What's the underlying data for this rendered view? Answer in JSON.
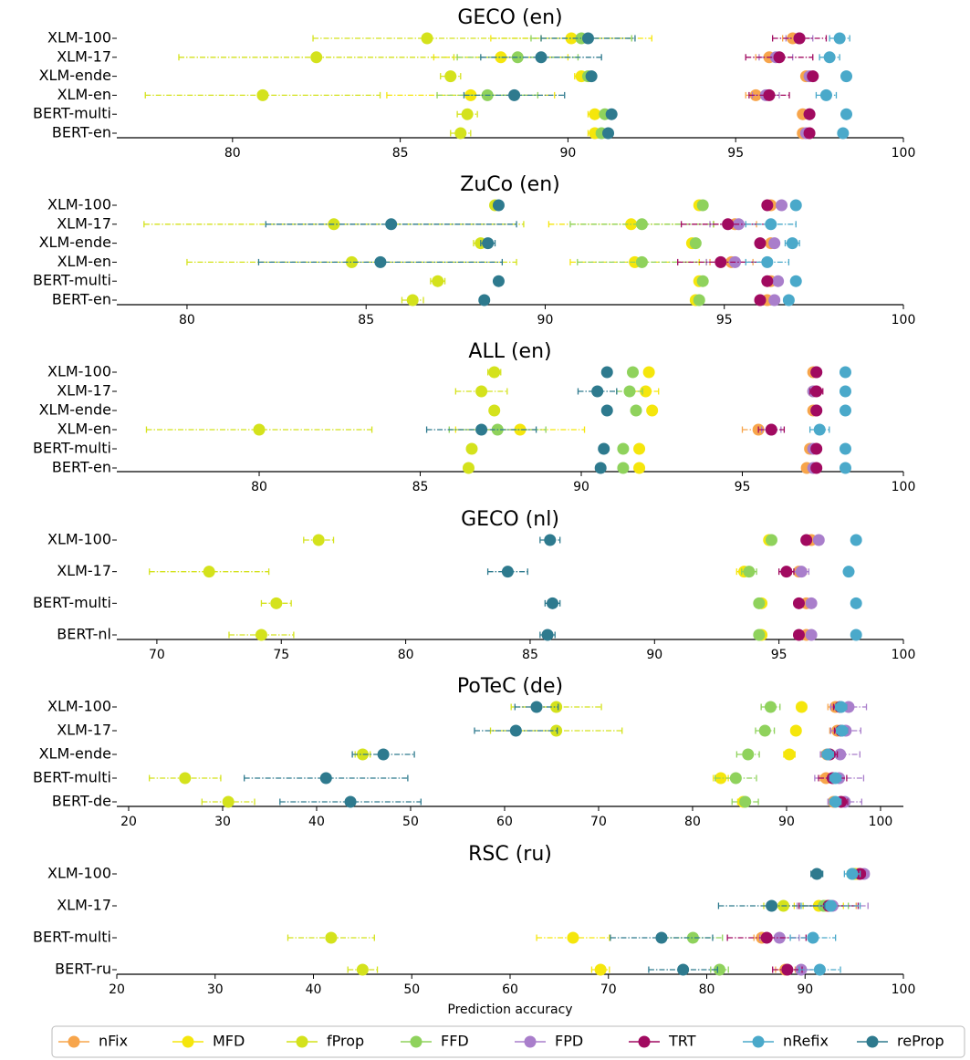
{
  "chart_data": [
    {
      "type": "dot",
      "title": "GECO (en)",
      "categories": [
        "XLM-100",
        "XLM-17",
        "XLM-ende",
        "XLM-en",
        "BERT-multi",
        "BERT-en"
      ],
      "xlim": [
        76.55,
        100
      ],
      "xticks": [
        80,
        85,
        90,
        95,
        100
      ],
      "series": [
        {
          "name": "nFix",
          "color": "#f7a54b",
          "values": [
            96.7,
            96.0,
            97.1,
            95.6,
            97.0,
            97.0
          ],
          "errors": [
            0.3,
            0.4,
            0.1,
            0.3,
            0.1,
            0.1
          ]
        },
        {
          "name": "MFD",
          "color": "#f5e60c",
          "values": [
            90.1,
            88.0,
            90.4,
            87.1,
            90.8,
            90.8
          ],
          "errors": [
            2.4,
            2.0,
            0.2,
            2.5,
            0.2,
            0.2
          ]
        },
        {
          "name": "fProp",
          "color": "#d4e21c",
          "values": [
            85.8,
            82.5,
            86.5,
            80.9,
            87.0,
            86.8
          ],
          "errors": [
            3.4,
            4.1,
            0.3,
            3.5,
            0.3,
            0.3
          ]
        },
        {
          "name": "FFD",
          "color": "#8fd25c",
          "values": [
            90.4,
            88.5,
            90.6,
            87.6,
            91.1,
            91.0
          ],
          "errors": [
            1.5,
            1.8,
            0.1,
            1.5,
            0.1,
            0.1
          ]
        },
        {
          "name": "FPD",
          "color": "#a97ecb",
          "values": [
            96.9,
            96.2,
            97.2,
            95.9,
            97.2,
            97.1
          ],
          "errors": [
            0.4,
            0.5,
            0.1,
            0.4,
            0.1,
            0.1
          ]
        },
        {
          "name": "TRT",
          "color": "#a10a60",
          "values": [
            96.9,
            96.3,
            97.3,
            96.0,
            97.2,
            97.2
          ],
          "errors": [
            0.8,
            1.0,
            0.1,
            0.6,
            0.1,
            0.1
          ]
        },
        {
          "name": "nRefix",
          "color": "#4aa9ca",
          "values": [
            98.1,
            97.8,
            98.3,
            97.7,
            98.3,
            98.2
          ],
          "errors": [
            0.3,
            0.3,
            0.1,
            0.3,
            0.1,
            0.1
          ]
        },
        {
          "name": "reProp",
          "color": "#2e7a8e",
          "values": [
            90.6,
            89.2,
            90.7,
            88.4,
            91.3,
            91.2
          ],
          "errors": [
            1.4,
            1.8,
            0.1,
            1.5,
            0.1,
            0.1
          ]
        }
      ]
    },
    {
      "type": "dot",
      "title": "ZuCo (en)",
      "categories": [
        "XLM-100",
        "XLM-17",
        "XLM-ende",
        "XLM-en",
        "BERT-multi",
        "BERT-en"
      ],
      "xlim": [
        78.04,
        100
      ],
      "xticks": [
        80,
        85,
        90,
        95,
        100
      ],
      "series": [
        {
          "name": "nFix",
          "color": "#f7a54b",
          "values": [
            96.3,
            95.3,
            96.3,
            95.2,
            96.3,
            96.2
          ],
          "errors": [
            0.1,
            0.6,
            0.1,
            0.6,
            0.1,
            0.1
          ]
        },
        {
          "name": "MFD",
          "color": "#f5e60c",
          "values": [
            94.3,
            92.4,
            94.1,
            92.5,
            94.3,
            94.2
          ],
          "errors": [
            0.1,
            2.3,
            0.1,
            1.8,
            0.1,
            0.1
          ]
        },
        {
          "name": "fProp",
          "color": "#d4e21c",
          "values": [
            88.6,
            84.1,
            88.2,
            84.6,
            87.0,
            86.3
          ],
          "errors": [
            0.1,
            5.3,
            0.2,
            4.6,
            0.2,
            0.3
          ]
        },
        {
          "name": "FFD",
          "color": "#8fd25c",
          "values": [
            94.4,
            92.7,
            94.2,
            92.7,
            94.4,
            94.3
          ],
          "errors": [
            0.1,
            2.0,
            0.1,
            1.8,
            0.1,
            0.1
          ]
        },
        {
          "name": "FPD",
          "color": "#a97ecb",
          "values": [
            96.6,
            95.4,
            96.4,
            95.3,
            96.5,
            96.4
          ],
          "errors": [
            0.1,
            0.8,
            0.1,
            0.8,
            0.1,
            0.1
          ]
        },
        {
          "name": "TRT",
          "color": "#a10a60",
          "values": [
            96.2,
            95.1,
            96.0,
            94.9,
            96.2,
            96.0
          ],
          "errors": [
            0.1,
            1.3,
            0.1,
            1.2,
            0.1,
            0.1
          ]
        },
        {
          "name": "nRefix",
          "color": "#4aa9ca",
          "values": [
            97.0,
            96.3,
            96.9,
            96.2,
            97.0,
            96.8
          ],
          "errors": [
            0.1,
            0.7,
            0.2,
            0.6,
            0.1,
            0.1
          ]
        },
        {
          "name": "reProp",
          "color": "#2e7a8e",
          "values": [
            88.7,
            85.7,
            88.4,
            85.4,
            88.7,
            88.3
          ],
          "errors": [
            0.1,
            3.5,
            0.2,
            3.4,
            0.1,
            0.1
          ]
        }
      ]
    },
    {
      "type": "dot",
      "title": "ALL (en)",
      "categories": [
        "XLM-100",
        "XLM-17",
        "XLM-ende",
        "XLM-en",
        "BERT-multi",
        "BERT-en"
      ],
      "xlim": [
        75.58,
        100
      ],
      "xticks": [
        80,
        85,
        90,
        95,
        100
      ],
      "series": [
        {
          "name": "nFix",
          "color": "#f7a54b",
          "values": [
            97.2,
            97.2,
            97.2,
            95.5,
            97.1,
            97.0
          ],
          "errors": [
            0.1,
            0.1,
            0.1,
            0.5,
            0.1,
            0.1
          ]
        },
        {
          "name": "MFD",
          "color": "#f5e60c",
          "values": [
            92.1,
            92.0,
            92.2,
            88.1,
            91.8,
            91.8
          ],
          "errors": [
            0.1,
            0.4,
            0.1,
            2.0,
            0.1,
            0.1
          ]
        },
        {
          "name": "fProp",
          "color": "#d4e21c",
          "values": [
            87.3,
            86.9,
            87.3,
            80.0,
            86.6,
            86.5
          ],
          "errors": [
            0.2,
            0.8,
            0.1,
            3.5,
            0.1,
            0.1
          ]
        },
        {
          "name": "FFD",
          "color": "#8fd25c",
          "values": [
            91.6,
            91.5,
            91.7,
            87.4,
            91.3,
            91.3
          ],
          "errors": [
            0.1,
            0.4,
            0.1,
            1.5,
            0.1,
            0.1
          ]
        },
        {
          "name": "FPD",
          "color": "#a97ecb",
          "values": [
            97.3,
            97.2,
            97.3,
            95.9,
            97.2,
            97.2
          ],
          "errors": [
            0.1,
            0.1,
            0.1,
            0.3,
            0.1,
            0.1
          ]
        },
        {
          "name": "TRT",
          "color": "#a10a60",
          "values": [
            97.3,
            97.3,
            97.3,
            95.9,
            97.3,
            97.3
          ],
          "errors": [
            0.1,
            0.2,
            0.1,
            0.4,
            0.1,
            0.1
          ]
        },
        {
          "name": "nRefix",
          "color": "#4aa9ca",
          "values": [
            98.2,
            98.2,
            98.2,
            97.4,
            98.2,
            98.2
          ],
          "errors": [
            0.1,
            0.1,
            0.1,
            0.3,
            0.1,
            0.1
          ]
        },
        {
          "name": "reProp",
          "color": "#2e7a8e",
          "values": [
            90.8,
            90.5,
            90.8,
            86.9,
            90.7,
            90.6
          ],
          "errors": [
            0.1,
            0.6,
            0.1,
            1.7,
            0.1,
            0.1
          ]
        }
      ]
    },
    {
      "type": "dot",
      "title": "GECO (nl)",
      "categories": [
        "XLM-100",
        "XLM-17",
        "BERT-multi",
        "BERT-nl"
      ],
      "xlim": [
        68.39,
        100
      ],
      "xticks": [
        70,
        75,
        80,
        85,
        90,
        95,
        100
      ],
      "series": [
        {
          "name": "nFix",
          "color": "#f7a54b",
          "values": [
            96.3,
            95.8,
            96.1,
            96.1
          ],
          "errors": [
            0.1,
            0.3,
            0.1,
            0.1
          ]
        },
        {
          "name": "MFD",
          "color": "#f5e60c",
          "values": [
            94.6,
            93.6,
            94.3,
            94.3
          ],
          "errors": [
            0.1,
            0.3,
            0.1,
            0.1
          ]
        },
        {
          "name": "fProp",
          "color": "#d4e21c",
          "values": [
            76.5,
            72.1,
            74.8,
            74.2
          ],
          "errors": [
            0.6,
            2.4,
            0.6,
            1.3
          ]
        },
        {
          "name": "FFD",
          "color": "#8fd25c",
          "values": [
            94.7,
            93.8,
            94.2,
            94.2
          ],
          "errors": [
            0.1,
            0.3,
            0.1,
            0.1
          ]
        },
        {
          "name": "FPD",
          "color": "#a97ecb",
          "values": [
            96.6,
            95.9,
            96.3,
            96.3
          ],
          "errors": [
            0.1,
            0.3,
            0.1,
            0.1
          ]
        },
        {
          "name": "TRT",
          "color": "#a10a60",
          "values": [
            96.1,
            95.3,
            95.8,
            95.8
          ],
          "errors": [
            0.1,
            0.3,
            0.1,
            0.1
          ]
        },
        {
          "name": "nRefix",
          "color": "#4aa9ca",
          "values": [
            98.1,
            97.8,
            98.1,
            98.1
          ],
          "errors": [
            0.1,
            0.1,
            0.1,
            0.1
          ]
        },
        {
          "name": "reProp",
          "color": "#2e7a8e",
          "values": [
            85.8,
            84.1,
            85.9,
            85.7
          ],
          "errors": [
            0.4,
            0.8,
            0.3,
            0.3
          ]
        }
      ]
    },
    {
      "type": "dot",
      "title": "PoTeC (de)",
      "categories": [
        "XLM-100",
        "XLM-17",
        "XLM-ende",
        "BERT-multi",
        "BERT-de"
      ],
      "xlim": [
        18.74,
        102.43
      ],
      "xticks": [
        20,
        30,
        40,
        50,
        60,
        70,
        80,
        90,
        100
      ],
      "series": [
        {
          "name": "nFix",
          "color": "#f7a54b",
          "values": [
            95.2,
            95.4,
            94.3,
            94.2,
            95.0
          ],
          "errors": [
            0.8,
            0.8,
            0.6,
            0.6,
            0.5
          ]
        },
        {
          "name": "MFD",
          "color": "#f5e60c",
          "values": [
            91.6,
            91.0,
            90.3,
            83.0,
            85.4
          ],
          "errors": [
            0.5,
            0.5,
            0.6,
            0.8,
            0.6
          ]
        },
        {
          "name": "fProp",
          "color": "#d4e21c",
          "values": [
            65.5,
            65.5,
            44.9,
            26.0,
            30.6
          ],
          "errors": [
            4.8,
            7.0,
            0.8,
            3.8,
            2.8
          ]
        },
        {
          "name": "FFD",
          "color": "#8fd25c",
          "values": [
            88.3,
            87.7,
            85.9,
            84.6,
            85.6
          ],
          "errors": [
            1.0,
            1.0,
            1.2,
            2.2,
            1.4
          ]
        },
        {
          "name": "FPD",
          "color": "#a97ecb",
          "values": [
            96.6,
            96.3,
            95.7,
            95.6,
            96.2
          ],
          "errors": [
            1.9,
            1.6,
            2.1,
            2.6,
            1.8
          ]
        },
        {
          "name": "TRT",
          "color": "#a10a60",
          "values": [
            95.7,
            95.8,
            94.6,
            94.9,
            95.8
          ],
          "errors": [
            0.7,
            0.7,
            0.8,
            1.5,
            0.7
          ]
        },
        {
          "name": "nRefix",
          "color": "#4aa9ca",
          "values": [
            95.8,
            95.9,
            94.4,
            95.2,
            95.2
          ],
          "errors": [
            0.6,
            0.6,
            0.6,
            0.6,
            0.6
          ]
        },
        {
          "name": "reProp",
          "color": "#2e7a8e",
          "values": [
            63.4,
            61.2,
            47.1,
            41.0,
            43.6
          ],
          "errors": [
            2.3,
            4.4,
            3.3,
            8.7,
            7.5
          ]
        }
      ]
    },
    {
      "type": "dot",
      "title": "RSC (ru)",
      "xlabel": "Prediction accuracy",
      "categories": [
        "XLM-100",
        "XLM-17",
        "BERT-multi",
        "BERT-ru"
      ],
      "xlim": [
        20,
        100
      ],
      "xticks": [
        20,
        30,
        40,
        50,
        60,
        70,
        80,
        90,
        100
      ],
      "series": [
        {
          "name": "nFix",
          "color": "#f7a54b",
          "values": [
            95.4,
            92.2,
            85.6,
            88.0
          ],
          "errors": [
            0.6,
            3.0,
            0.8,
            1.0
          ]
        },
        {
          "name": "MFD",
          "color": "#f5e60c",
          "values": [
            95.1,
            91.4,
            66.4,
            69.2
          ],
          "errors": [
            0.4,
            2.5,
            3.7,
            0.9
          ]
        },
        {
          "name": "fProp",
          "color": "#d4e21c",
          "values": [
            95.0,
            87.8,
            41.8,
            45.0
          ],
          "errors": [
            0.4,
            2.0,
            4.4,
            1.5
          ]
        },
        {
          "name": "FFD",
          "color": "#8fd25c",
          "values": [
            94.8,
            91.9,
            78.6,
            81.3
          ],
          "errors": [
            0.5,
            2.5,
            3.0,
            0.9
          ]
        },
        {
          "name": "FPD",
          "color": "#a97ecb",
          "values": [
            96.0,
            92.8,
            87.4,
            89.6
          ],
          "errors": [
            0.5,
            3.6,
            2.0,
            1.5
          ]
        },
        {
          "name": "TRT",
          "color": "#a10a60",
          "values": [
            95.6,
            92.4,
            86.1,
            88.2
          ],
          "errors": [
            0.5,
            3.0,
            4.0,
            1.5
          ]
        },
        {
          "name": "nRefix",
          "color": "#4aa9ca",
          "values": [
            94.8,
            92.6,
            90.8,
            91.5
          ],
          "errors": [
            0.8,
            3.0,
            2.3,
            2.1
          ]
        },
        {
          "name": "reProp",
          "color": "#2e7a8e",
          "values": [
            91.2,
            86.6,
            75.4,
            77.6
          ],
          "errors": [
            0.6,
            5.4,
            5.2,
            3.5
          ]
        }
      ]
    }
  ]
}
